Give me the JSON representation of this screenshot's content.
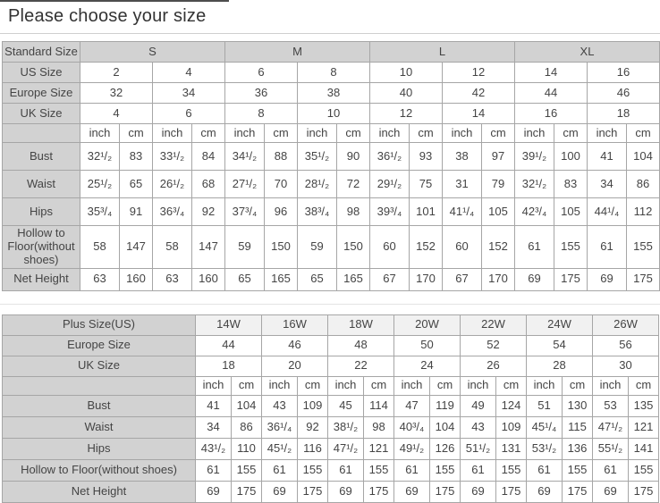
{
  "title": "Please choose your size",
  "colors": {
    "header_bg": "#d2d2d2",
    "row_tint_bg": "#f1f1f1",
    "grid_border": "#a6a6a6",
    "outer_border": "#8c8c8c",
    "text": "#444444",
    "title_text": "#333333",
    "accent_line": "#4d4d4d"
  },
  "tables": [
    {
      "name": "standard-size-table",
      "unit_labels": [
        "inch",
        "cm"
      ],
      "header_rows": [
        {
          "label": "Standard Size",
          "span": 4,
          "shaded": true,
          "values": [
            "S",
            "M",
            "L",
            "XL"
          ]
        },
        {
          "label": "US Size",
          "span": 2,
          "values": [
            "2",
            "4",
            "6",
            "8",
            "10",
            "12",
            "14",
            "16"
          ]
        },
        {
          "label": "Europe Size",
          "span": 2,
          "values": [
            "32",
            "34",
            "36",
            "38",
            "40",
            "42",
            "44",
            "46"
          ]
        },
        {
          "label": "UK Size",
          "span": 2,
          "values": [
            "4",
            "6",
            "8",
            "10",
            "12",
            "14",
            "16",
            "18"
          ]
        }
      ],
      "measure_rows": [
        {
          "label": "Bust",
          "values": [
            "32¹/₂",
            "83",
            "33¹/₂",
            "84",
            "34¹/₂",
            "88",
            "35¹/₂",
            "90",
            "36¹/₂",
            "93",
            "38",
            "97",
            "39¹/₂",
            "100",
            "41",
            "104"
          ]
        },
        {
          "label": "Waist",
          "values": [
            "25¹/₂",
            "65",
            "26¹/₂",
            "68",
            "27¹/₂",
            "70",
            "28¹/₂",
            "72",
            "29¹/₂",
            "75",
            "31",
            "79",
            "32¹/₂",
            "83",
            "34",
            "86"
          ]
        },
        {
          "label": "Hips",
          "values": [
            "35³/₄",
            "91",
            "36³/₄",
            "92",
            "37³/₄",
            "96",
            "38³/₄",
            "98",
            "39³/₄",
            "101",
            "41¹/₄",
            "105",
            "42³/₄",
            "105",
            "44¹/₄",
            "112"
          ]
        },
        {
          "label": "Hollow to Floor(without shoes)",
          "values": [
            "58",
            "147",
            "58",
            "147",
            "59",
            "150",
            "59",
            "150",
            "60",
            "152",
            "60",
            "152",
            "61",
            "155",
            "61",
            "155"
          ]
        },
        {
          "label": "Net Height",
          "values": [
            "63",
            "160",
            "63",
            "160",
            "65",
            "165",
            "65",
            "165",
            "67",
            "170",
            "67",
            "170",
            "69",
            "175",
            "69",
            "175"
          ]
        }
      ]
    },
    {
      "name": "plus-size-table",
      "unit_labels": [
        "inch",
        "cm"
      ],
      "header_rows": [
        {
          "label": "Plus Size(US)",
          "span": 2,
          "tint": true,
          "values": [
            "14W",
            "16W",
            "18W",
            "20W",
            "22W",
            "24W",
            "26W"
          ]
        },
        {
          "label": "Europe Size",
          "span": 2,
          "values": [
            "44",
            "46",
            "48",
            "50",
            "52",
            "54",
            "56"
          ]
        },
        {
          "label": "UK Size",
          "span": 2,
          "values": [
            "18",
            "20",
            "22",
            "24",
            "26",
            "28",
            "30"
          ]
        }
      ],
      "measure_rows": [
        {
          "label": "Bust",
          "values": [
            "41",
            "104",
            "43",
            "109",
            "45",
            "114",
            "47",
            "119",
            "49",
            "124",
            "51",
            "130",
            "53",
            "135"
          ]
        },
        {
          "label": "Waist",
          "values": [
            "34",
            "86",
            "36¹/₄",
            "92",
            "38¹/₂",
            "98",
            "40³/₄",
            "104",
            "43",
            "109",
            "45¹/₄",
            "115",
            "47¹/₂",
            "121"
          ]
        },
        {
          "label": "Hips",
          "values": [
            "43¹/₂",
            "110",
            "45¹/₂",
            "116",
            "47¹/₂",
            "121",
            "49¹/₂",
            "126",
            "51¹/₂",
            "131",
            "53¹/₂",
            "136",
            "55¹/₂",
            "141"
          ]
        },
        {
          "label": "Hollow to Floor(without shoes)",
          "values": [
            "61",
            "155",
            "61",
            "155",
            "61",
            "155",
            "61",
            "155",
            "61",
            "155",
            "61",
            "155",
            "61",
            "155"
          ]
        },
        {
          "label": "Net Height",
          "values": [
            "69",
            "175",
            "69",
            "175",
            "69",
            "175",
            "69",
            "175",
            "69",
            "175",
            "69",
            "175",
            "69",
            "175"
          ]
        }
      ]
    }
  ]
}
